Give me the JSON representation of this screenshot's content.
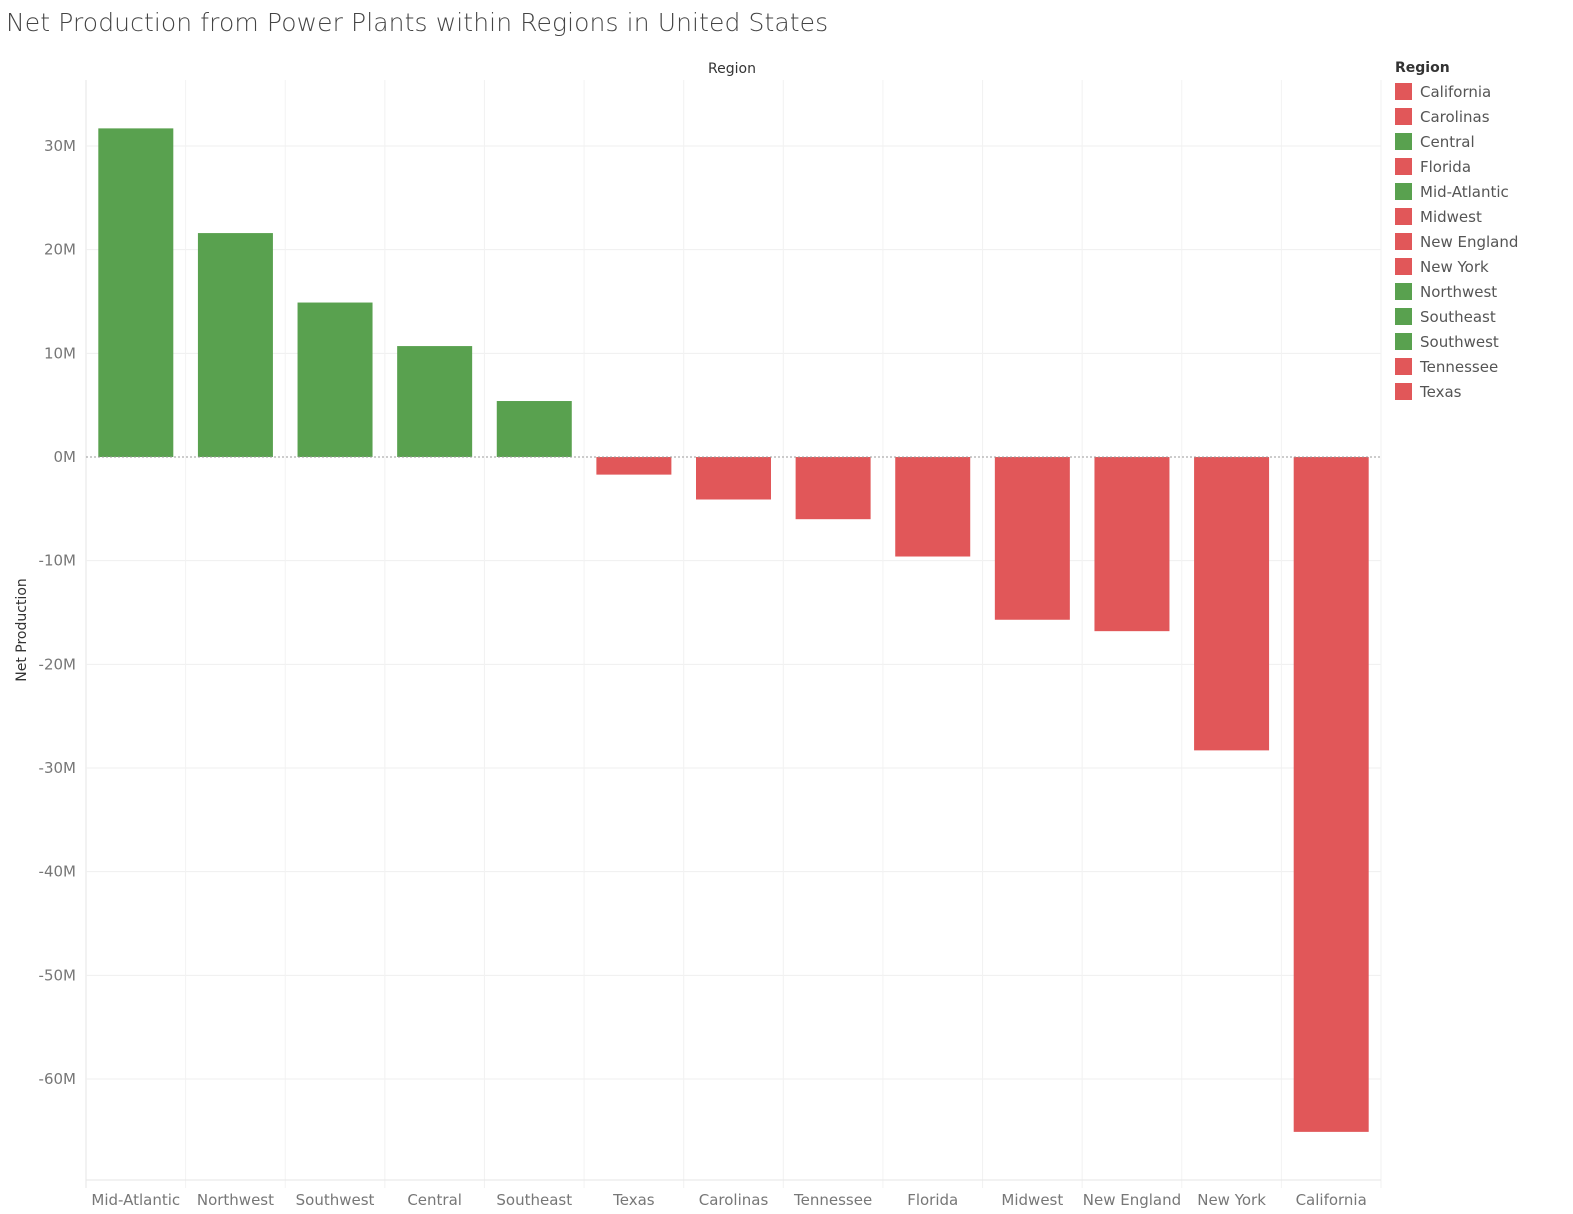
{
  "chart_data": {
    "type": "bar",
    "title": "Net Production from Power Plants within Regions in United States",
    "xlabel": "Region",
    "ylabel": "Net Production",
    "categories": [
      "Mid-Atlantic",
      "Northwest",
      "Southwest",
      "Central",
      "Southeast",
      "Texas",
      "Carolinas",
      "Tennessee",
      "Florida",
      "Midwest",
      "New England",
      "New York",
      "California"
    ],
    "values": [
      31700000,
      21600000,
      14900000,
      10700000,
      5400000,
      -1700000,
      -4100000,
      -6000000,
      -9600000,
      -15700000,
      -16800000,
      -28300000,
      -65100000
    ],
    "colors": {
      "positive": "#59a14f",
      "negative": "#e15759"
    },
    "ylim": [
      -70000000,
      36000000
    ],
    "yticks": [
      30000000,
      20000000,
      10000000,
      0,
      -10000000,
      -20000000,
      -30000000,
      -40000000,
      -50000000,
      -60000000
    ],
    "ytick_labels": [
      "30M",
      "20M",
      "10M",
      "0M",
      "-10M",
      "-20M",
      "-30M",
      "-40M",
      "-50M",
      "-60M"
    ],
    "grid": true,
    "legend": {
      "title": "Region",
      "placement": "right",
      "items": [
        {
          "label": "California",
          "color": "#e15759"
        },
        {
          "label": "Carolinas",
          "color": "#e15759"
        },
        {
          "label": "Central",
          "color": "#59a14f"
        },
        {
          "label": "Florida",
          "color": "#e15759"
        },
        {
          "label": "Mid-Atlantic",
          "color": "#59a14f"
        },
        {
          "label": "Midwest",
          "color": "#e15759"
        },
        {
          "label": "New England",
          "color": "#e15759"
        },
        {
          "label": "New York",
          "color": "#e15759"
        },
        {
          "label": "Northwest",
          "color": "#59a14f"
        },
        {
          "label": "Southeast",
          "color": "#59a14f"
        },
        {
          "label": "Southwest",
          "color": "#59a14f"
        },
        {
          "label": "Tennessee",
          "color": "#e15759"
        },
        {
          "label": "Texas",
          "color": "#e15759"
        }
      ]
    }
  }
}
